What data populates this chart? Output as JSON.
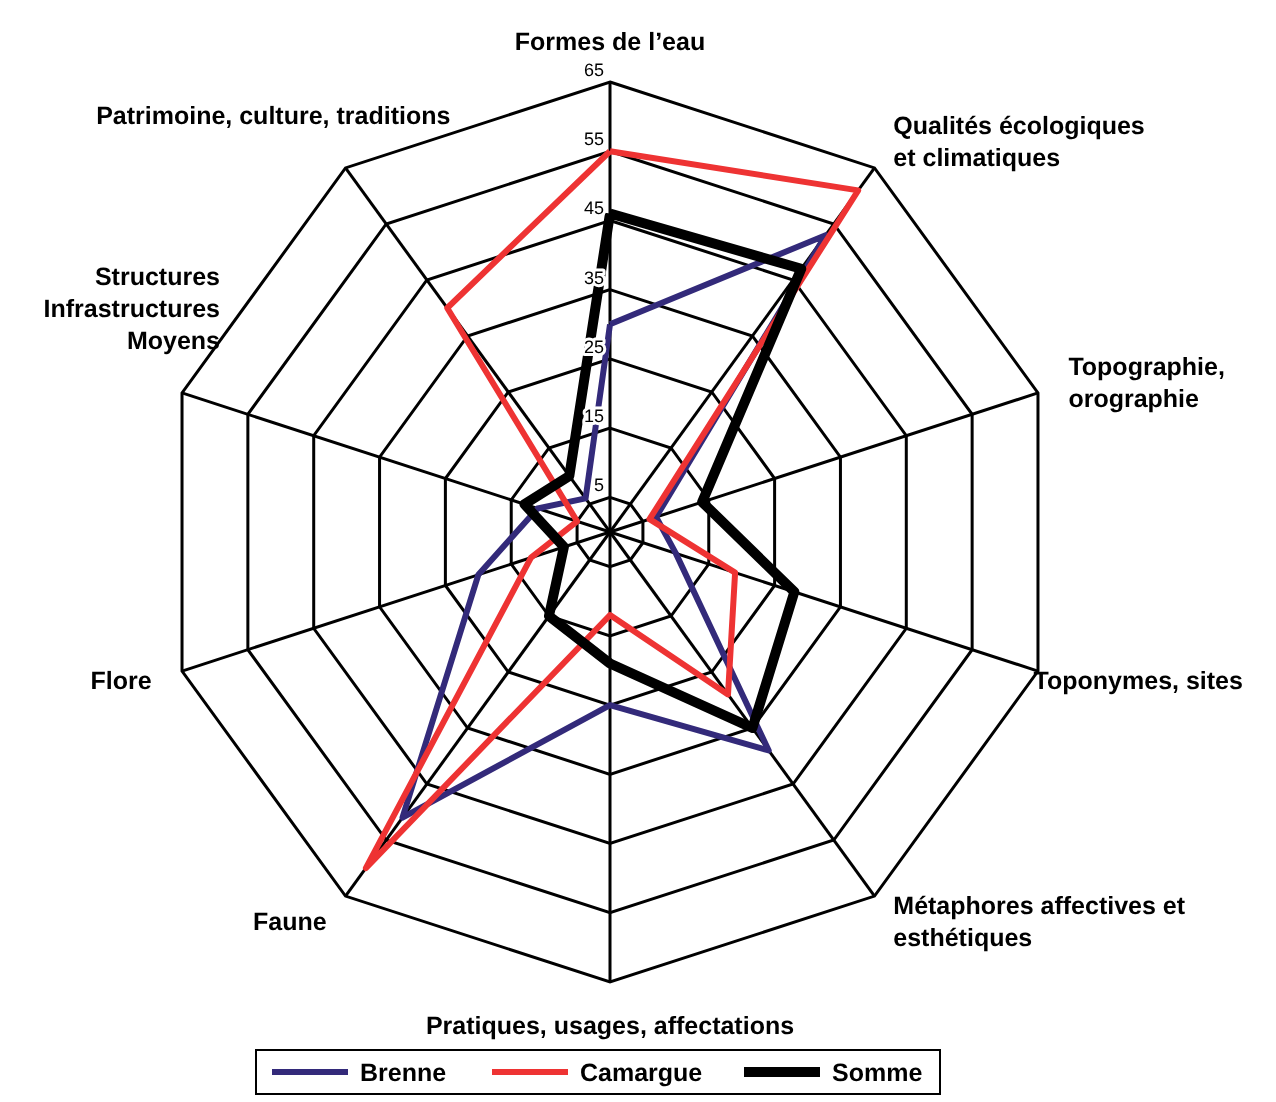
{
  "chart_data": {
    "type": "radar",
    "categories": [
      "Formes de l’eau",
      "Qualités écologiques\net climatiques",
      "Topographie,\norographie",
      "Toponymes, sites",
      "Métaphores affectives et\nesthétiques",
      "Pratiques, usages, affectations",
      "Faune",
      "Flore",
      "Structures\nInfrastructures\nMoyens",
      "Patrimoine, culture, traditions"
    ],
    "series": [
      {
        "name": "Brenne",
        "color": "#332a7a",
        "values": [
          30,
          53,
          7,
          10,
          39,
          25,
          51,
          20,
          11,
          6
        ]
      },
      {
        "name": "Camargue",
        "color": "#ee3333",
        "values": [
          55,
          61,
          6,
          19,
          29,
          12,
          60,
          12,
          5,
          40
        ]
      },
      {
        "name": "Somme",
        "color": "#000000",
        "values": [
          46,
          47,
          14,
          28,
          35,
          19,
          15,
          7,
          13,
          10
        ]
      }
    ],
    "ylim": [
      0,
      65
    ],
    "yticks": [
      5,
      15,
      25,
      35,
      45,
      55,
      65
    ],
    "grid": true,
    "legend": "bottom",
    "marker": "none",
    "line_style": "solid"
  }
}
